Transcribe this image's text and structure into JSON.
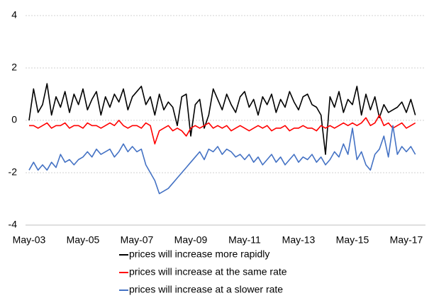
{
  "chart_data": {
    "type": "line",
    "categories": [
      "May-03",
      null,
      null,
      null,
      null,
      null,
      null,
      null,
      null,
      null,
      null,
      null,
      "May-05",
      null,
      null,
      null,
      null,
      null,
      null,
      null,
      null,
      null,
      null,
      null,
      "May-07",
      null,
      null,
      null,
      null,
      null,
      null,
      null,
      null,
      null,
      null,
      null,
      "May-09",
      null,
      null,
      null,
      null,
      null,
      null,
      null,
      null,
      null,
      null,
      null,
      "May-11",
      null,
      null,
      null,
      null,
      null,
      null,
      null,
      null,
      null,
      null,
      null,
      "May-13",
      null,
      null,
      null,
      null,
      null,
      null,
      null,
      null,
      null,
      null,
      null,
      "May-15",
      null,
      null,
      null,
      null,
      null,
      null,
      null,
      null,
      null,
      null,
      null,
      "May-17",
      null,
      null
    ],
    "series": [
      {
        "name": "prices will increase more rapidly",
        "color": "#000000",
        "values": [
          0.0,
          1.2,
          0.3,
          0.6,
          1.4,
          0.2,
          0.9,
          0.5,
          1.1,
          0.3,
          1.0,
          0.6,
          1.2,
          0.4,
          0.8,
          1.1,
          0.2,
          0.9,
          0.5,
          1.0,
          0.7,
          1.2,
          0.4,
          0.9,
          1.1,
          1.3,
          0.6,
          0.9,
          0.2,
          1.0,
          0.4,
          0.7,
          0.5,
          -0.2,
          0.9,
          1.0,
          -0.6,
          0.6,
          0.8,
          -0.3,
          0.2,
          1.2,
          0.8,
          0.4,
          1.0,
          0.6,
          0.3,
          0.9,
          1.1,
          0.5,
          0.8,
          0.2,
          0.9,
          0.6,
          1.0,
          0.3,
          0.8,
          0.5,
          1.1,
          0.7,
          0.4,
          0.9,
          1.0,
          0.6,
          0.5,
          0.2,
          -1.3,
          0.9,
          0.5,
          1.1,
          0.3,
          0.8,
          0.6,
          1.3,
          0.2,
          1.0,
          0.4,
          0.9,
          0.1,
          0.6,
          0.3,
          0.4,
          0.5,
          0.7,
          0.3,
          0.8,
          0.2
        ]
      },
      {
        "name": "prices will increase at the same rate",
        "color": "#ff0000",
        "values": [
          -0.2,
          -0.2,
          -0.3,
          -0.2,
          -0.1,
          -0.3,
          -0.2,
          -0.2,
          -0.1,
          -0.3,
          -0.2,
          -0.2,
          -0.3,
          -0.1,
          -0.2,
          -0.2,
          -0.3,
          -0.2,
          -0.1,
          -0.2,
          0.0,
          -0.2,
          -0.3,
          -0.2,
          -0.2,
          -0.3,
          -0.1,
          -0.2,
          -0.9,
          -0.4,
          -0.3,
          -0.2,
          -0.4,
          -0.3,
          -0.4,
          -0.6,
          -0.3,
          -0.2,
          -0.3,
          -0.2,
          -0.1,
          -0.3,
          -0.2,
          -0.3,
          -0.2,
          -0.4,
          -0.3,
          -0.2,
          -0.3,
          -0.4,
          -0.3,
          -0.2,
          -0.3,
          -0.2,
          -0.4,
          -0.3,
          -0.3,
          -0.2,
          -0.4,
          -0.3,
          -0.3,
          -0.2,
          -0.3,
          -0.3,
          -0.4,
          -0.2,
          -0.3,
          -0.2,
          -0.3,
          -0.2,
          -0.1,
          -0.2,
          -0.1,
          -0.2,
          -0.1,
          0.1,
          -0.2,
          -0.1,
          0.2,
          -0.2,
          -0.1,
          -0.3,
          -0.2,
          -0.1,
          -0.3,
          -0.2,
          -0.1
        ]
      },
      {
        "name": "prices will increase at a slower rate",
        "color": "#4472c4",
        "values": [
          -1.9,
          -1.6,
          -1.9,
          -1.7,
          -1.9,
          -1.6,
          -1.8,
          -1.3,
          -1.6,
          -1.5,
          -1.7,
          -1.5,
          -1.4,
          -1.2,
          -1.4,
          -1.1,
          -1.3,
          -1.2,
          -1.1,
          -1.4,
          -1.2,
          -0.9,
          -1.2,
          -1.0,
          -1.2,
          -1.1,
          -1.7,
          -2.0,
          -2.3,
          -2.8,
          -2.7,
          -2.6,
          -2.4,
          -2.2,
          -2.0,
          -1.8,
          -1.6,
          -1.4,
          -1.2,
          -1.5,
          -1.1,
          -1.2,
          -1.0,
          -1.3,
          -1.1,
          -1.2,
          -1.4,
          -1.3,
          -1.5,
          -1.3,
          -1.6,
          -1.4,
          -1.7,
          -1.5,
          -1.3,
          -1.6,
          -1.4,
          -1.7,
          -1.5,
          -1.3,
          -1.6,
          -1.4,
          -1.5,
          -1.3,
          -1.6,
          -1.4,
          -1.7,
          -1.5,
          -1.2,
          -1.4,
          -0.9,
          -1.3,
          -0.3,
          -1.5,
          -1.2,
          -1.7,
          -1.9,
          -1.3,
          -1.1,
          -0.6,
          -1.4,
          -0.2,
          -1.3,
          -1.0,
          -1.2,
          -1.0,
          -1.3
        ]
      }
    ],
    "ylim": [
      -4,
      4
    ],
    "yticks": [
      -4,
      -2,
      0,
      2,
      4
    ],
    "grid": true,
    "legend": "bottom"
  }
}
